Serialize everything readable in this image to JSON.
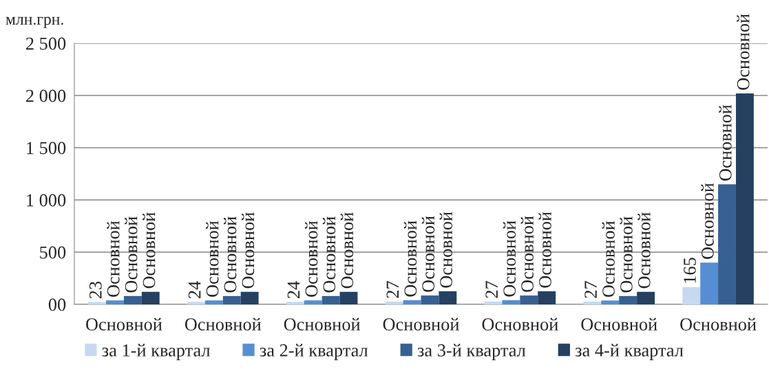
{
  "chart_data": {
    "type": "bar",
    "ylabel": "млн.грн.",
    "categories": [
      "Основной",
      "Основной",
      "Основной",
      "Основной",
      "Основной",
      "Основной",
      "Основной"
    ],
    "series": [
      {
        "name": "за 1-й квартал",
        "color": "#c6d9f1",
        "values": [
          23,
          24,
          24,
          27,
          27,
          27,
          165
        ],
        "value_labels": [
          "23",
          "24",
          "24",
          "27",
          "27",
          "27",
          "165"
        ]
      },
      {
        "name": "за 2-й квартал",
        "color": "#558ed5",
        "values": [
          38,
          38,
          38,
          40,
          40,
          37,
          400
        ],
        "value_labels": [
          "Основной",
          "Основной",
          "Основной",
          "Основной",
          "Основной",
          "Основной",
          "Основной"
        ]
      },
      {
        "name": "за 3-й квартал",
        "color": "#376092",
        "values": [
          80,
          80,
          80,
          85,
          85,
          80,
          1150
        ],
        "value_labels": [
          "Основной",
          "Основной",
          "Основной",
          "Основной",
          "Основной",
          "Основной",
          "Основной"
        ]
      },
      {
        "name": "за 4-й квартал",
        "color": "#254061",
        "values": [
          120,
          120,
          120,
          125,
          125,
          120,
          2020
        ],
        "value_labels": [
          "Основной",
          "Основной",
          "Основной",
          "Основной",
          "Основной",
          "Основной",
          "Основной"
        ]
      }
    ],
    "ylim": [
      0,
      2500
    ],
    "yticks": [
      {
        "value": 0,
        "label": "00"
      },
      {
        "value": 500,
        "label": "500"
      },
      {
        "value": 1000,
        "label": "1 000"
      },
      {
        "value": 1500,
        "label": "1 500"
      },
      {
        "value": 2000,
        "label": "2 000"
      },
      {
        "value": 2500,
        "label": "2 500"
      }
    ],
    "grid": "y",
    "legend": "bottom"
  }
}
